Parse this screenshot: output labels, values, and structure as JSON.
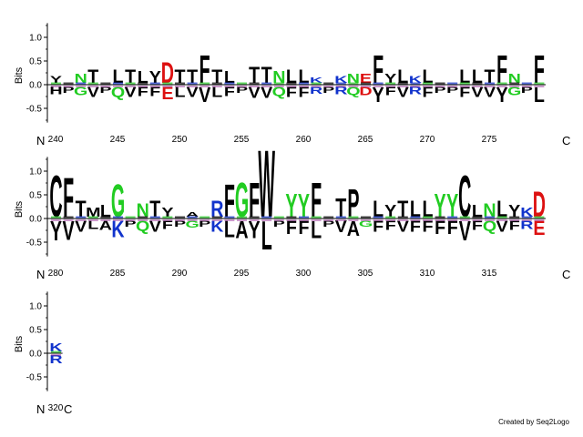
{
  "logo": {
    "y_label": "Bits",
    "n_terminus": "N",
    "c_terminus": "C",
    "credit": "Created by Seq2Logo",
    "y_ticks": [
      "1.0",
      "0.5",
      "0.0",
      "-0.5"
    ]
  },
  "colors": {
    "black": "#000000",
    "green": "#22cc22",
    "red": "#dd1111",
    "blue": "#1133cc",
    "purple": "#993399"
  },
  "chart_data": {
    "type": "sequence-logo",
    "ylabel": "Bits",
    "ylim": [
      -0.8,
      1.3
    ],
    "rows": [
      {
        "start": 240,
        "x_ticks": [
          "240",
          "245",
          "250",
          "255",
          "260",
          "265",
          "270",
          "275"
        ],
        "positions": [
          {
            "pos": 240,
            "top": "Y",
            "h": 0.15,
            "c": "black",
            "under": "H"
          },
          {
            "pos": 241,
            "top": "",
            "h": 0.05,
            "c": "black",
            "under": "P"
          },
          {
            "pos": 242,
            "top": "N",
            "h": 0.2,
            "c": "green",
            "under": "G"
          },
          {
            "pos": 243,
            "top": "T",
            "h": 0.3,
            "c": "black",
            "under": "V"
          },
          {
            "pos": 244,
            "top": "",
            "h": 0.05,
            "c": "black",
            "under": "P"
          },
          {
            "pos": 245,
            "top": "L",
            "h": 0.3,
            "c": "black",
            "under": "Q"
          },
          {
            "pos": 246,
            "top": "T",
            "h": 0.3,
            "c": "black",
            "under": "V"
          },
          {
            "pos": 247,
            "top": "L",
            "h": 0.25,
            "c": "black",
            "under": "F"
          },
          {
            "pos": 248,
            "top": "Y",
            "h": 0.25,
            "c": "black",
            "under": "F"
          },
          {
            "pos": 249,
            "top": "D",
            "h": 0.45,
            "c": "red",
            "under": "E"
          },
          {
            "pos": 250,
            "top": "T",
            "h": 0.3,
            "c": "black",
            "under": "L"
          },
          {
            "pos": 251,
            "top": "T",
            "h": 0.3,
            "c": "black",
            "under": "V"
          },
          {
            "pos": 252,
            "top": "F",
            "h": 0.6,
            "c": "black",
            "under": "V"
          },
          {
            "pos": 253,
            "top": "T",
            "h": 0.3,
            "c": "black",
            "under": "L"
          },
          {
            "pos": 254,
            "top": "L",
            "h": 0.25,
            "c": "black",
            "under": "F"
          },
          {
            "pos": 255,
            "top": "",
            "h": 0.05,
            "c": "black",
            "under": "P"
          },
          {
            "pos": 256,
            "top": "T",
            "h": 0.35,
            "c": "black",
            "under": "V"
          },
          {
            "pos": 257,
            "top": "T",
            "h": 0.35,
            "c": "black",
            "under": "V"
          },
          {
            "pos": 258,
            "top": "N",
            "h": 0.25,
            "c": "green",
            "under": "Q"
          },
          {
            "pos": 259,
            "top": "L",
            "h": 0.3,
            "c": "black",
            "under": "F"
          },
          {
            "pos": 260,
            "top": "L",
            "h": 0.3,
            "c": "black",
            "under": "F"
          },
          {
            "pos": 261,
            "top": "K",
            "h": 0.12,
            "c": "blue",
            "under": "R"
          },
          {
            "pos": 262,
            "top": "",
            "h": 0.05,
            "c": "black",
            "under": "P"
          },
          {
            "pos": 263,
            "top": "K",
            "h": 0.15,
            "c": "blue",
            "under": "R"
          },
          {
            "pos": 264,
            "top": "N",
            "h": 0.2,
            "c": "green",
            "under": "Q"
          },
          {
            "pos": 265,
            "top": "E",
            "h": 0.2,
            "c": "red",
            "under": "D"
          },
          {
            "pos": 266,
            "top": "F",
            "h": 0.6,
            "c": "black",
            "under": "Y"
          },
          {
            "pos": 267,
            "top": "Y",
            "h": 0.2,
            "c": "black",
            "under": "F"
          },
          {
            "pos": 268,
            "top": "L",
            "h": 0.3,
            "c": "black",
            "under": "V"
          },
          {
            "pos": 269,
            "top": "K",
            "h": 0.15,
            "c": "blue",
            "under": "R"
          },
          {
            "pos": 270,
            "top": "L",
            "h": 0.3,
            "c": "black",
            "under": "F"
          },
          {
            "pos": 271,
            "top": "",
            "h": 0.05,
            "c": "black",
            "under": "P"
          },
          {
            "pos": 272,
            "top": "",
            "h": 0.05,
            "c": "black",
            "under": "P"
          },
          {
            "pos": 273,
            "top": "L",
            "h": 0.3,
            "c": "black",
            "under": "F"
          },
          {
            "pos": 274,
            "top": "L",
            "h": 0.3,
            "c": "black",
            "under": "V"
          },
          {
            "pos": 275,
            "top": "T",
            "h": 0.3,
            "c": "black",
            "under": "V"
          },
          {
            "pos": 276,
            "top": "F",
            "h": 0.6,
            "c": "black",
            "under": "Y"
          },
          {
            "pos": 277,
            "top": "N",
            "h": 0.2,
            "c": "green",
            "under": "G"
          },
          {
            "pos": 278,
            "top": "",
            "h": 0.05,
            "c": "black",
            "under": "P"
          },
          {
            "pos": 279,
            "top": "F",
            "h": 0.6,
            "c": "black",
            "under": "L"
          }
        ]
      },
      {
        "start": 280,
        "x_ticks": [
          "280",
          "285",
          "290",
          "295",
          "300",
          "305",
          "310",
          "315"
        ],
        "positions": [
          {
            "pos": 280,
            "top": "C",
            "h": 0.9,
            "c": "black",
            "under": "Y"
          },
          {
            "pos": 281,
            "top": "F",
            "h": 0.85,
            "c": "black",
            "under": "V"
          },
          {
            "pos": 282,
            "top": "T",
            "h": 0.35,
            "c": "black",
            "under": "V"
          },
          {
            "pos": 283,
            "top": "M",
            "h": 0.2,
            "c": "black",
            "under": "L"
          },
          {
            "pos": 284,
            "top": "L",
            "h": 0.25,
            "c": "black",
            "under": "A"
          },
          {
            "pos": 285,
            "top": "G",
            "h": 0.7,
            "c": "green",
            "under": "K"
          },
          {
            "pos": 286,
            "top": "",
            "h": 0.05,
            "c": "black",
            "under": "P"
          },
          {
            "pos": 287,
            "top": "N",
            "h": 0.3,
            "c": "green",
            "under": "Q"
          },
          {
            "pos": 288,
            "top": "T",
            "h": 0.35,
            "c": "black",
            "under": "V"
          },
          {
            "pos": 289,
            "top": "Y",
            "h": 0.2,
            "c": "black",
            "under": "F"
          },
          {
            "pos": 290,
            "top": "",
            "h": 0.05,
            "c": "black",
            "under": "P"
          },
          {
            "pos": 291,
            "top": "A",
            "h": 0.1,
            "c": "black",
            "under": "G"
          },
          {
            "pos": 292,
            "top": "",
            "h": 0.05,
            "c": "black",
            "under": "P"
          },
          {
            "pos": 293,
            "top": "R",
            "h": 0.35,
            "c": "blue",
            "under": "K"
          },
          {
            "pos": 294,
            "top": "F",
            "h": 0.7,
            "c": "black",
            "under": "L"
          },
          {
            "pos": 295,
            "top": "G",
            "h": 0.75,
            "c": "green",
            "under": "A"
          },
          {
            "pos": 296,
            "top": "F",
            "h": 0.75,
            "c": "black",
            "under": "Y"
          },
          {
            "pos": 297,
            "top": "W",
            "h": 1.45,
            "c": "black",
            "under": "L"
          },
          {
            "pos": 298,
            "top": "",
            "h": 0.05,
            "c": "black",
            "under": "P"
          },
          {
            "pos": 299,
            "top": "Y",
            "h": 0.5,
            "c": "green",
            "under": "F"
          },
          {
            "pos": 300,
            "top": "Y",
            "h": 0.5,
            "c": "green",
            "under": "F"
          },
          {
            "pos": 301,
            "top": "F",
            "h": 0.75,
            "c": "black",
            "under": "L"
          },
          {
            "pos": 302,
            "top": "",
            "h": 0.05,
            "c": "black",
            "under": "P"
          },
          {
            "pos": 303,
            "top": "T",
            "h": 0.4,
            "c": "black",
            "under": "V"
          },
          {
            "pos": 304,
            "top": "P",
            "h": 0.6,
            "c": "black",
            "under": "A"
          },
          {
            "pos": 305,
            "top": "",
            "h": 0.05,
            "c": "black",
            "under": "G"
          },
          {
            "pos": 306,
            "top": "L",
            "h": 0.35,
            "c": "black",
            "under": "F"
          },
          {
            "pos": 307,
            "top": "Y",
            "h": 0.25,
            "c": "black",
            "under": "F"
          },
          {
            "pos": 308,
            "top": "T",
            "h": 0.35,
            "c": "black",
            "under": "V"
          },
          {
            "pos": 309,
            "top": "L",
            "h": 0.35,
            "c": "black",
            "under": "F"
          },
          {
            "pos": 310,
            "top": "L",
            "h": 0.35,
            "c": "black",
            "under": "F"
          },
          {
            "pos": 311,
            "top": "Y",
            "h": 0.5,
            "c": "green",
            "under": "F"
          },
          {
            "pos": 312,
            "top": "Y",
            "h": 0.5,
            "c": "green",
            "under": "F"
          },
          {
            "pos": 313,
            "top": "C",
            "h": 0.9,
            "c": "black",
            "under": "V"
          },
          {
            "pos": 314,
            "top": "L",
            "h": 0.25,
            "c": "black",
            "under": "F"
          },
          {
            "pos": 315,
            "top": "N",
            "h": 0.3,
            "c": "green",
            "under": "Q"
          },
          {
            "pos": 316,
            "top": "L",
            "h": 0.35,
            "c": "black",
            "under": "V"
          },
          {
            "pos": 317,
            "top": "Y",
            "h": 0.25,
            "c": "black",
            "under": "F"
          },
          {
            "pos": 318,
            "top": "K",
            "h": 0.2,
            "c": "blue",
            "under": "R"
          },
          {
            "pos": 319,
            "top": "D",
            "h": 0.55,
            "c": "red",
            "under": "E"
          }
        ]
      },
      {
        "start": 320,
        "x_ticks": [
          "320"
        ],
        "positions": [
          {
            "pos": 320,
            "top": "K",
            "h": 0.18,
            "c": "blue",
            "under": "R"
          }
        ]
      }
    ]
  }
}
